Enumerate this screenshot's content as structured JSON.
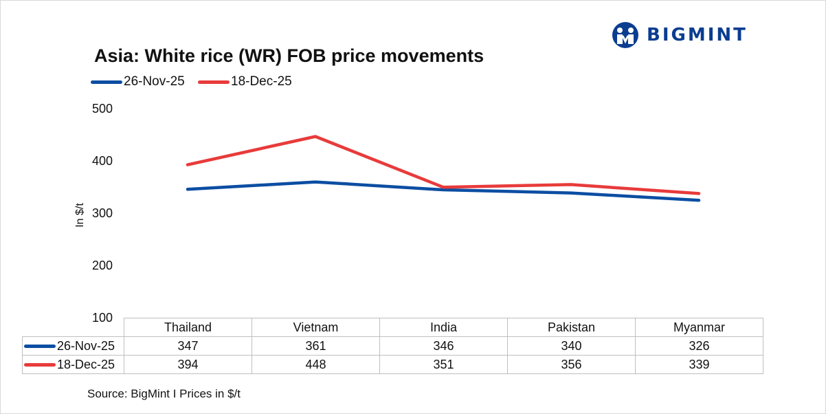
{
  "logo": {
    "text": "BIGMINT",
    "color": "#0b3d91"
  },
  "chart_data": {
    "type": "line",
    "title": "Asia: White rice (WR) FOB price movements",
    "ylabel": "In $/t",
    "xlabel": "",
    "categories": [
      "Thailand",
      "Vietnam",
      "India",
      "Pakistan",
      "Myanmar"
    ],
    "series": [
      {
        "name": "26-Nov-25",
        "values": [
          347,
          361,
          346,
          340,
          326
        ],
        "color": "#0b4ea2"
      },
      {
        "name": "18-Dec-25",
        "values": [
          394,
          448,
          351,
          356,
          339
        ],
        "color": "#e83b3b"
      }
    ],
    "ylim": [
      100,
      500
    ],
    "yticks": [
      "500",
      "400",
      "300",
      "200",
      "100"
    ],
    "legend_position": "top-left",
    "grid": false,
    "data_table": true
  },
  "source": "Source: BigMint I Prices in $/t"
}
